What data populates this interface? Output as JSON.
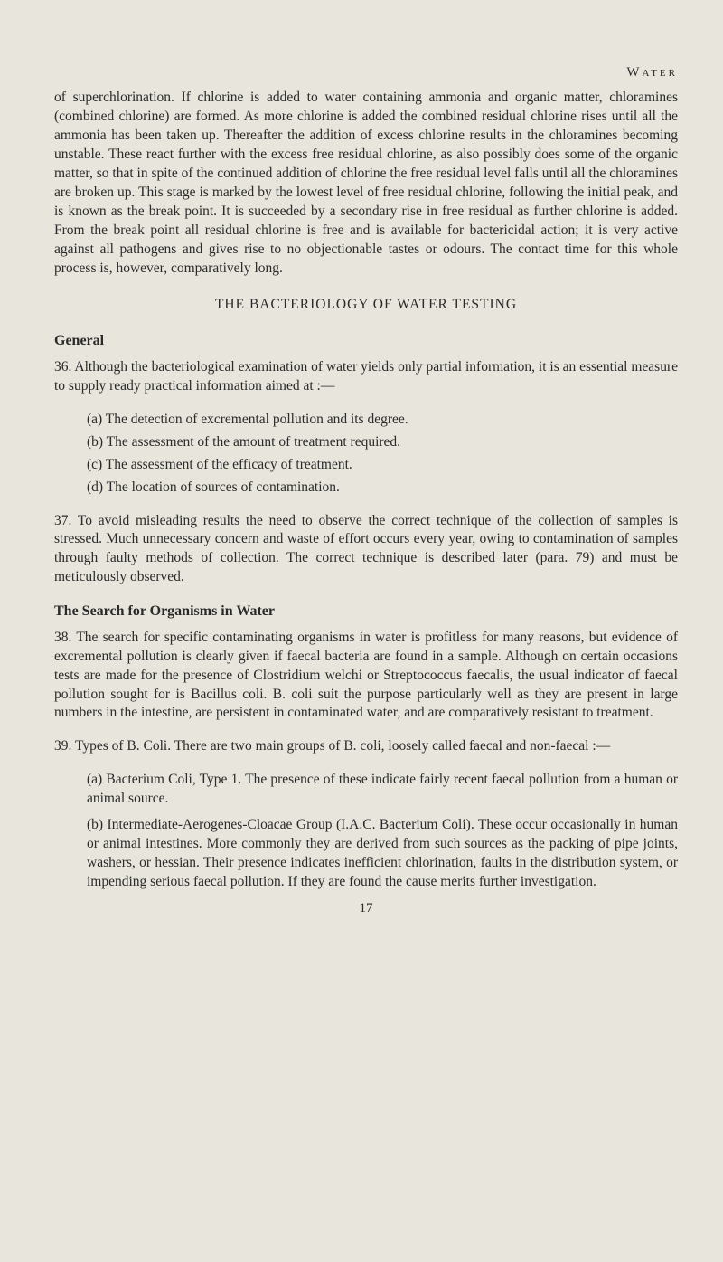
{
  "header": {
    "running_title": "Water"
  },
  "paragraphs": {
    "p1": "of superchlorination. If chlorine is added to water containing ammonia and organic matter, chloramines (combined chlorine) are formed. As more chlorine is added the combined residual chlorine rises until all the ammonia has been taken up. Thereafter the addition of excess chlorine results in the chloramines becoming unstable. These react further with the excess free residual chlorine, as also possibly does some of the organic matter, so that in spite of the continued addition of chlorine the free residual level falls until all the chloramines are broken up. This stage is marked by the lowest level of free residual chlorine, following the initial peak, and is known as the break point. It is succeeded by a secondary rise in free residual as further chlorine is added. From the break point all residual chlorine is free and is available for bactericidal action; it is very active against all pathogens and gives rise to no objectionable tastes or odours. The contact time for this whole process is, however, comparatively long."
  },
  "section_title": "THE BACTERIOLOGY OF WATER TESTING",
  "general_heading": "General",
  "p36": "36. Although the bacteriological examination of water yields only partial information, it is an essential measure to supply ready practical information aimed at :—",
  "list36": {
    "a": "(a) The detection of excremental pollution and its degree.",
    "b": "(b) The assessment of the amount of treatment required.",
    "c": "(c) The assessment of the efficacy of treatment.",
    "d": "(d) The location of sources of contamination."
  },
  "p37": "37. To avoid misleading results the need to observe the correct technique of the collection of samples is stressed. Much unnecessary concern and waste of effort occurs every year, owing to contamination of samples through faulty methods of collection. The correct technique is described later (para. 79) and must be meticulously observed.",
  "search_heading": "The Search for Organisms in Water",
  "p38": "38. The search for specific contaminating organisms in water is profitless for many reasons, but evidence of excremental pollution is clearly given if faecal bacteria are found in a sample. Although on certain occasions tests are made for the presence of Clostridium welchi or Streptococcus faecalis, the usual indicator of faecal pollution sought for is Bacillus coli. B. coli suit the purpose particularly well as they are present in large numbers in the intestine, are persistent in contaminated water, and are comparatively resistant to treatment.",
  "p39_intro": "39. Types of B. Coli. There are two main groups of B. coli, loosely called faecal and non-faecal :—",
  "p39_a": "(a) Bacterium Coli, Type 1. The presence of these indicate fairly recent faecal pollution from a human or animal source.",
  "p39_b": "(b) Intermediate-Aerogenes-Cloacae Group (I.A.C. Bacterium Coli). These occur occasionally in human or animal intestines. More commonly they are derived from such sources as the packing of pipe joints, washers, or hessian. Their presence indicates inefficient chlorination, faults in the distribution system, or impending serious faecal pollution. If they are found the cause merits further investigation.",
  "page_number": "17",
  "colors": {
    "background": "#e8e5dc",
    "text": "#2a2a2a"
  },
  "typography": {
    "body_font_family": "Georgia, Times New Roman, serif",
    "body_font_size": 15.5,
    "heading_font_weight": "bold",
    "line_height": 1.35
  }
}
